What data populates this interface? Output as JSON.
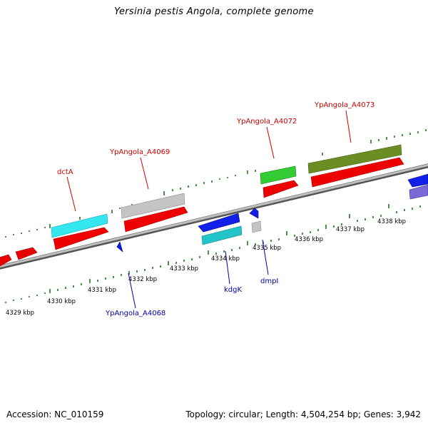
{
  "title": "Yersinia pestis Angola, complete genome",
  "footer": {
    "accession": "Accession: NC_010159",
    "stats": "Topology: circular; Length: 4,504,254 bp; Genes: 3,942"
  },
  "colors": {
    "backbone": "#8a8a8a",
    "tick": "#1a7a1a",
    "label_top": "#cc0000",
    "label_bottom": "#0000aa"
  },
  "scale_labels": [
    {
      "bp": 4329,
      "text": "4329 kbp"
    },
    {
      "bp": 4330,
      "text": "4330 kbp"
    },
    {
      "bp": 4331,
      "text": "4331 kbp"
    },
    {
      "bp": 4332,
      "text": "4332 kbp"
    },
    {
      "bp": 4333,
      "text": "4333 kbp"
    },
    {
      "bp": 4334,
      "text": "4334 kbp"
    },
    {
      "bp": 4335,
      "text": "4335 kbp"
    },
    {
      "bp": 4336,
      "text": "4336 kbp"
    },
    {
      "bp": 4337,
      "text": "4337 kbp"
    },
    {
      "bp": 4338,
      "text": "4338 kbp"
    }
  ],
  "gene_labels": [
    {
      "text": "dctA",
      "side": "top"
    },
    {
      "text": "YpAngola_A4069",
      "side": "top"
    },
    {
      "text": "YpAngola_A4072",
      "side": "top"
    },
    {
      "text": "YpAngola_A4073",
      "side": "top"
    },
    {
      "text": "YpAngola_A4068",
      "side": "bottom"
    },
    {
      "text": "kdgK",
      "side": "bottom"
    },
    {
      "text": "dmpI",
      "side": "bottom"
    }
  ]
}
